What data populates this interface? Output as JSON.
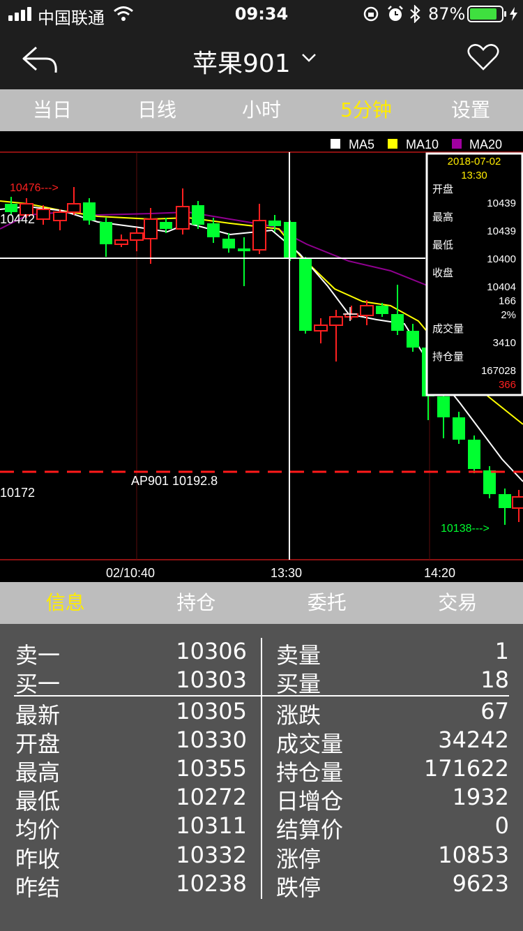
{
  "status_bar": {
    "carrier": "中国联通",
    "time": "09:34",
    "battery_percent": "87%",
    "battery_level": 0.87,
    "icons": [
      "signal-icon",
      "wifi-icon",
      "rotation-lock-icon",
      "alarm-icon",
      "bluetooth-icon",
      "battery-icon",
      "charging-icon"
    ]
  },
  "nav": {
    "title": "苹果901",
    "icons": [
      "back-icon",
      "chevron-down-icon",
      "heart-icon"
    ]
  },
  "period_tabs": {
    "items": [
      "当日",
      "日线",
      "小时",
      "5分钟",
      "设置"
    ],
    "active": "5分钟"
  },
  "chart": {
    "legend": [
      {
        "label": "MA5",
        "color": "#ffffff"
      },
      {
        "label": "MA10",
        "color": "#ffff00"
      },
      {
        "label": "MA20",
        "color": "#a000a0"
      }
    ],
    "high_marker": "10476--->",
    "low_marker": "10138--->",
    "price_label_upper": "10442",
    "price_label_lower": "10172",
    "avg_line_label": "AP901 10192.8",
    "x_ticks": [
      "02/10:40",
      "13:30",
      "14:20"
    ],
    "colors": {
      "up": "#ff2020",
      "down": "#00ff30",
      "avg_line": "#ff1a1a"
    }
  },
  "tooltip": {
    "date": "2018-07-02",
    "time": "13:30",
    "open_label": "开盘",
    "open": "10439",
    "high_label": "最高",
    "high": "10439",
    "low_label": "最低",
    "low": "10400",
    "close_label": "收盘",
    "close": "10404",
    "change": "166",
    "change_pct": "2%",
    "volume_label": "成交量",
    "volume": "3410",
    "oi_label": "持仓量",
    "open_interest": "167028",
    "oi_change": "366"
  },
  "info_tabs": {
    "items": [
      "信息",
      "持仓",
      "委托",
      "交易"
    ],
    "active": "信息"
  },
  "quote": {
    "left": [
      {
        "label": "卖一",
        "value": "10306"
      },
      {
        "label": "买一",
        "value": "10303"
      },
      {
        "label": "最新",
        "value": "10305"
      },
      {
        "label": "开盘",
        "value": "10330"
      },
      {
        "label": "最高",
        "value": "10355"
      },
      {
        "label": "最低",
        "value": "10272"
      },
      {
        "label": "均价",
        "value": "10311"
      },
      {
        "label": "昨收",
        "value": "10332"
      },
      {
        "label": "昨结",
        "value": "10238"
      }
    ],
    "right": [
      {
        "label": "卖量",
        "value": "1"
      },
      {
        "label": "买量",
        "value": "18"
      },
      {
        "label": "涨跌",
        "value": "67"
      },
      {
        "label": "成交量",
        "value": "34242"
      },
      {
        "label": "持仓量",
        "value": "171622"
      },
      {
        "label": "日增仓",
        "value": "1932"
      },
      {
        "label": "结算价",
        "value": "0"
      },
      {
        "label": "涨停",
        "value": "10853"
      },
      {
        "label": "跌停",
        "value": "9623"
      }
    ]
  }
}
